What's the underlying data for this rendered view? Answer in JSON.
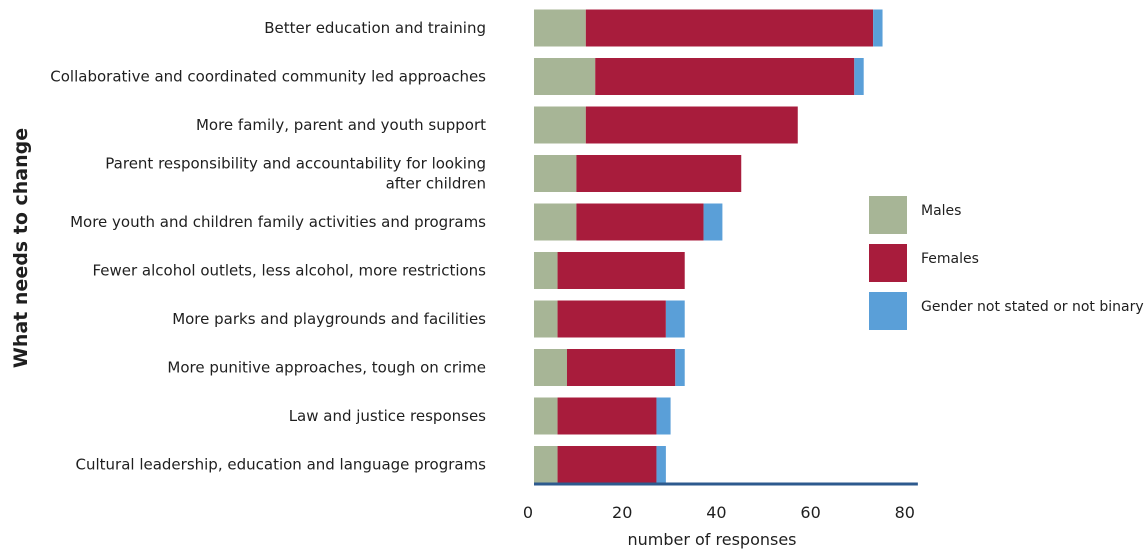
{
  "chart_data": {
    "type": "bar",
    "orientation": "horizontal",
    "stacked": true,
    "ylabel": "What needs to change",
    "xlabel": "number of responses",
    "xlim": [
      0,
      82
    ],
    "xticks": [
      0,
      20,
      40,
      60,
      80
    ],
    "grid": false,
    "legend_position": "right",
    "categories": [
      [
        "Better education and training"
      ],
      [
        "Collaborative and coordinated community led approaches"
      ],
      [
        "More family, parent and youth support"
      ],
      [
        "Parent responsibility  and accountability for looking",
        "after children"
      ],
      [
        "More youth and children family activities and programs "
      ],
      [
        "Fewer alcohol outlets, less alcohol, more restrictions"
      ],
      [
        "More parks and playgrounds and facilities"
      ],
      [
        "More punitive approaches, tough on crime"
      ],
      [
        "Law and justice responses"
      ],
      [
        "Cultural leadership, education and language programs"
      ]
    ],
    "series": [
      {
        "name": "Males",
        "color": "#a7b596",
        "values": [
          11,
          13,
          11,
          9,
          9,
          5,
          5,
          7,
          5,
          5
        ]
      },
      {
        "name": "Females",
        "color": "#a81c3c",
        "values": [
          61,
          55,
          45,
          35,
          27,
          27,
          23,
          23,
          21,
          21
        ]
      },
      {
        "name": "Gender not stated or not binary",
        "color": "#5a9fd8",
        "values": [
          2,
          2,
          0,
          0,
          4,
          0,
          4,
          2,
          3,
          2
        ]
      }
    ],
    "axis_line_color": "#2d5a8e"
  }
}
